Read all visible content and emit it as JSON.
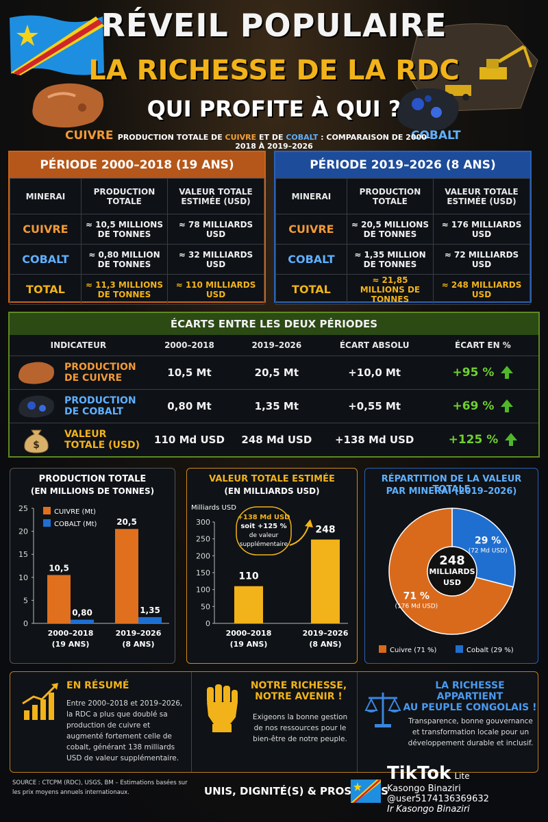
{
  "header": {
    "title_line1": "RÉVEIL POPULAIRE",
    "title_line2": "LA RICHESSE DE LA RDC",
    "title_line3": "QUI PROFITE À QUI ?",
    "subtitle_pre": "PRODUCTION TOTALE DE ",
    "subtitle_cu": "CUIVRE",
    "subtitle_mid": " ET DE ",
    "subtitle_co": "COBALT",
    "subtitle_post": " : COMPARAISON DE 2000–2018 À 2019–2026",
    "label_cuivre": "CUIVRE",
    "label_cobalt": "COBALT"
  },
  "period1": {
    "title": "PÉRIODE 2000–2018 (19 ANS)",
    "headers": [
      "MINERAI",
      "PRODUCTION TOTALE",
      "VALEUR TOTALE ESTIMÉE (USD)"
    ],
    "rows": [
      {
        "mineral": "CUIVRE",
        "production": "≈ 10,5 MILLIONS DE TONNES",
        "value": "≈ 78 MILLIARDS USD"
      },
      {
        "mineral": "COBALT",
        "production": "≈ 0,80 MILLION DE TONNES",
        "value": "≈ 32 MILLIARDS USD"
      },
      {
        "mineral": "TOTAL",
        "production": "≈ 11,3 MILLIONS DE TONNES",
        "value": "≈ 110 MILLIARDS USD"
      }
    ]
  },
  "period2": {
    "title": "PÉRIODE 2019–2026 (8 ANS)",
    "headers": [
      "MINERAI",
      "PRODUCTION TOTALE",
      "VALEUR TOTALE ESTIMÉE (USD)"
    ],
    "rows": [
      {
        "mineral": "CUIVRE",
        "production": "≈ 20,5 MILLIONS DE TONNES",
        "value": "≈ 176 MILLIARDS USD"
      },
      {
        "mineral": "COBALT",
        "production": "≈ 1,35 MILLION DE TONNES",
        "value": "≈ 72 MILLIARDS USD"
      },
      {
        "mineral": "TOTAL",
        "production": "≈ 21,85 MILLIONS DE TONNES",
        "value": "≈ 248 MILLIARDS USD"
      }
    ]
  },
  "ecarts": {
    "title": "ÉCARTS ENTRE LES DEUX PÉRIODES",
    "headers": [
      "INDICATEUR",
      "2000–2018",
      "2019–2026",
      "ÉCART ABSOLU",
      "ÉCART EN %"
    ],
    "rows": [
      {
        "indicator_l1": "PRODUCTION",
        "indicator_l2": "DE CUIVRE",
        "p1": "10,5 Mt",
        "p2": "20,5 Mt",
        "abs": "+10,0 Mt",
        "pct": "+95 %"
      },
      {
        "indicator_l1": "PRODUCTION",
        "indicator_l2": "DE COBALT",
        "p1": "0,80 Mt",
        "p2": "1,35 Mt",
        "abs": "+0,55 Mt",
        "pct": "+69 %"
      },
      {
        "indicator_l1": "VALEUR",
        "indicator_l2": "TOTALE (USD)",
        "p1": "110 Md USD",
        "p2": "248 Md USD",
        "abs": "+138 Md USD",
        "pct": "+125 %"
      }
    ]
  },
  "chart_data": [
    {
      "type": "bar",
      "title": "PRODUCTION TOTALE",
      "subtitle": "(EN MILLIONS DE TONNES)",
      "categories": [
        "2000–2018",
        "2019–2026"
      ],
      "category_sub": [
        "(19 ANS)",
        "(8 ANS)"
      ],
      "series": [
        {
          "name": "CUIVRE (Mt)",
          "values": [
            10.5,
            20.5
          ],
          "labels": [
            "10,5",
            "20,5"
          ],
          "color": "#e0701e"
        },
        {
          "name": "COBALT (Mt)",
          "values": [
            0.8,
            1.35
          ],
          "labels": [
            "0,80",
            "1,35"
          ],
          "color": "#1f6fd0"
        }
      ],
      "ylim": [
        0,
        25
      ],
      "yticks": [
        0,
        5,
        10,
        15,
        20,
        25
      ],
      "legend": "top-left"
    },
    {
      "type": "bar",
      "title": "VALEUR TOTALE ESTIMÉE",
      "subtitle": "(EN MILLIARDS USD)",
      "ylabel": "Milliards USD",
      "categories": [
        "2000–2018",
        "2019–2026"
      ],
      "category_sub": [
        "(19 ANS)",
        "(8 ANS)"
      ],
      "values": [
        110,
        248
      ],
      "labels": [
        "110",
        "248"
      ],
      "color": "#f2b31a",
      "ylim": [
        0,
        300
      ],
      "yticks": [
        0,
        50,
        100,
        150,
        200,
        250,
        300
      ],
      "annotation": [
        "+138 Md USD",
        "soit +125 %",
        "de valeur",
        "supplémentaire"
      ]
    },
    {
      "type": "pie",
      "title": "RÉPARTITION DE LA VALEUR TOTALE",
      "subtitle": "PAR MINERAI (2019–2026)",
      "center_label": [
        "248",
        "MILLIARDS",
        "USD"
      ],
      "slices": [
        {
          "name": "Cuivre (71 %)",
          "value": 71,
          "pct_label": "71 %",
          "detail": "(176 Md USD)",
          "color": "#d96a1c"
        },
        {
          "name": "Cobalt (29 %)",
          "value": 29,
          "pct_label": "29 %",
          "detail": "(72 Md USD)",
          "color": "#1f6fd0"
        }
      ],
      "legend": "bottom"
    }
  ],
  "summary": {
    "resume_title": "EN RÉSUMÉ",
    "resume_text": "Entre 2000–2018 et 2019–2026, la RDC a plus que doublé sa production de cuivre et augmenté fortement celle de cobalt, générant 138 milliards USD de valeur supplémentaire.",
    "avenir_title_l1": "NOTRE RICHESSE,",
    "avenir_title_l2": "NOTRE AVENIR !",
    "avenir_text": "Exigeons la bonne gestion de nos ressources pour le bien-être de notre peuple.",
    "peuple_title_l1": "LA RICHESSE APPARTIENT",
    "peuple_title_l2": "AU PEUPLE CONGOLAIS !",
    "peuple_text": "Transparence, bonne gouvernance et transformation locale pour un développement durable et inclusif."
  },
  "footer": {
    "source": "SOURCE : CTCPM (RDC), USGS, BM – Estimations basées sur les prix moyens annuels internationaux.",
    "slogan": "UNIS, DIGNITÉ(S) & PROSPÈRES",
    "watermark_brand": "TikTok",
    "watermark_lite": "Lite",
    "watermark_line1": "Kasongo Binaziri",
    "watermark_line2": "@user5174136369632",
    "watermark_line3": "Ir Kasongo Binaziri"
  },
  "colors": {
    "cuivre": "#e0701e",
    "cobalt": "#1f6fd0",
    "gold": "#f2b31a",
    "green": "#4fb82a"
  }
}
